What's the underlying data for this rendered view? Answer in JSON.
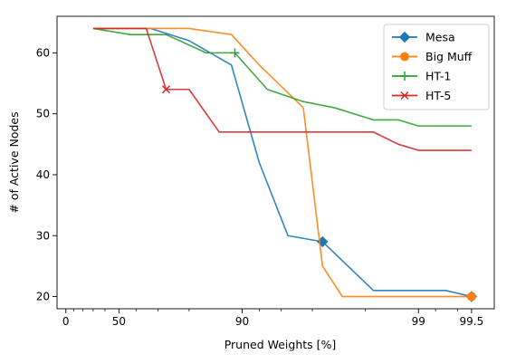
{
  "chart_data": {
    "type": "line",
    "xlabel": "Pruned Weights [%]",
    "ylabel": "# of Active Nodes",
    "x_scale": "logit-like (1 - pruned fraction)",
    "x_ticks": [
      {
        "value": 0,
        "label": "0"
      },
      {
        "value": 50,
        "label": "50"
      },
      {
        "value": 90,
        "label": "90"
      },
      {
        "value": 99,
        "label": "99"
      },
      {
        "value": 99.5,
        "label": "99.5"
      }
    ],
    "y_ticks": [
      20,
      30,
      40,
      50,
      60
    ],
    "ylim": [
      18,
      66
    ],
    "legend_position": "top-right",
    "grid": false,
    "series": [
      {
        "name": "Mesa",
        "color": "#1f77b4",
        "marker": "diamond",
        "marker_at": [
          96.5,
          99.5
        ],
        "points": [
          [
            30,
            64
          ],
          [
            50,
            64
          ],
          [
            67,
            64
          ],
          [
            80,
            62
          ],
          [
            88.5,
            58
          ],
          [
            92,
            42
          ],
          [
            94.5,
            30
          ],
          [
            96.5,
            29
          ],
          [
            98.2,
            21
          ],
          [
            99.3,
            21
          ],
          [
            99.5,
            20
          ]
        ]
      },
      {
        "name": "Big Muff",
        "color": "#ff7f0e",
        "marker": "circle",
        "marker_at": [
          99.5
        ],
        "points": [
          [
            30,
            64
          ],
          [
            80,
            64
          ],
          [
            88.5,
            63
          ],
          [
            92,
            58
          ],
          [
            95.5,
            51
          ],
          [
            96.5,
            25
          ],
          [
            97.3,
            20
          ],
          [
            99.5,
            20
          ]
        ]
      },
      {
        "name": "HT-1",
        "color": "#2ca02c",
        "marker": "plus",
        "marker_at": [
          89
        ],
        "points": [
          [
            30,
            64
          ],
          [
            57,
            63
          ],
          [
            73,
            63
          ],
          [
            84,
            60
          ],
          [
            89,
            60
          ],
          [
            92.8,
            54
          ],
          [
            95.5,
            52
          ],
          [
            97,
            51
          ],
          [
            98.2,
            49
          ],
          [
            98.7,
            49
          ],
          [
            99,
            48
          ],
          [
            99.5,
            48
          ]
        ]
      },
      {
        "name": "HT-5",
        "color": "#d62728",
        "marker": "x",
        "marker_at": [
          73
        ],
        "points": [
          [
            30,
            64
          ],
          [
            65,
            64
          ],
          [
            73,
            54
          ],
          [
            80,
            54
          ],
          [
            86.5,
            47
          ],
          [
            95.5,
            47
          ],
          [
            98.2,
            47
          ],
          [
            98.7,
            45
          ],
          [
            99,
            44
          ],
          [
            99.5,
            44
          ]
        ]
      }
    ]
  }
}
